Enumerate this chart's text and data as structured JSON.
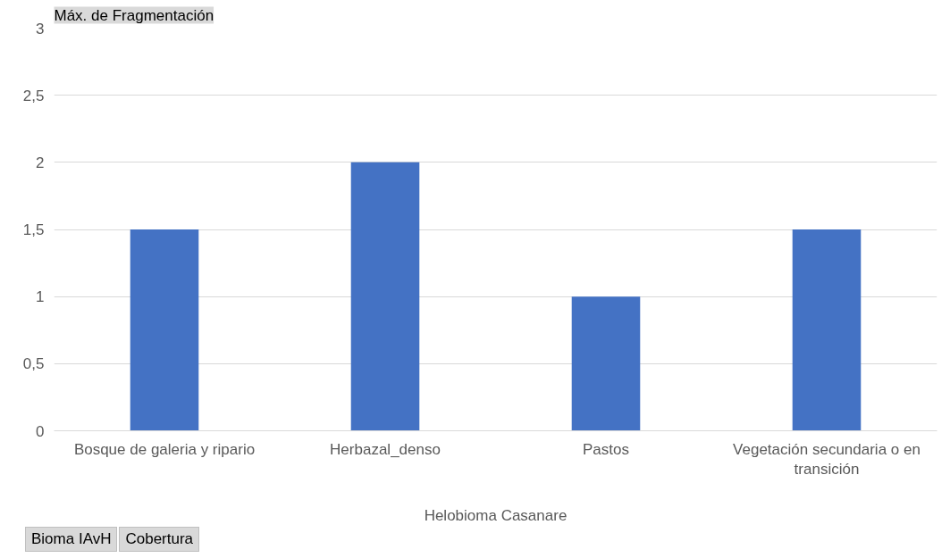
{
  "chart_data": {
    "type": "bar",
    "title": "Máx. de Fragmentación",
    "xlabel": "Helobioma Casanare",
    "categories": [
      "Bosque de galeria y ripario",
      "Herbazal_denso",
      "Pastos",
      "Vegetación secundaria o en transición"
    ],
    "values": [
      1.5,
      2,
      1,
      1.5
    ],
    "color": "#4472c4",
    "ylim": [
      0,
      3
    ],
    "yticks": [
      0,
      {
        "value": 0.5,
        "label": "0,5"
      },
      1,
      {
        "value": 1.5,
        "label": "1,5"
      },
      2,
      {
        "value": 2.5,
        "label": "2,5"
      },
      3
    ],
    "grid": "y",
    "annotations": [
      "Bioma IAvH",
      "Cobertura"
    ]
  }
}
